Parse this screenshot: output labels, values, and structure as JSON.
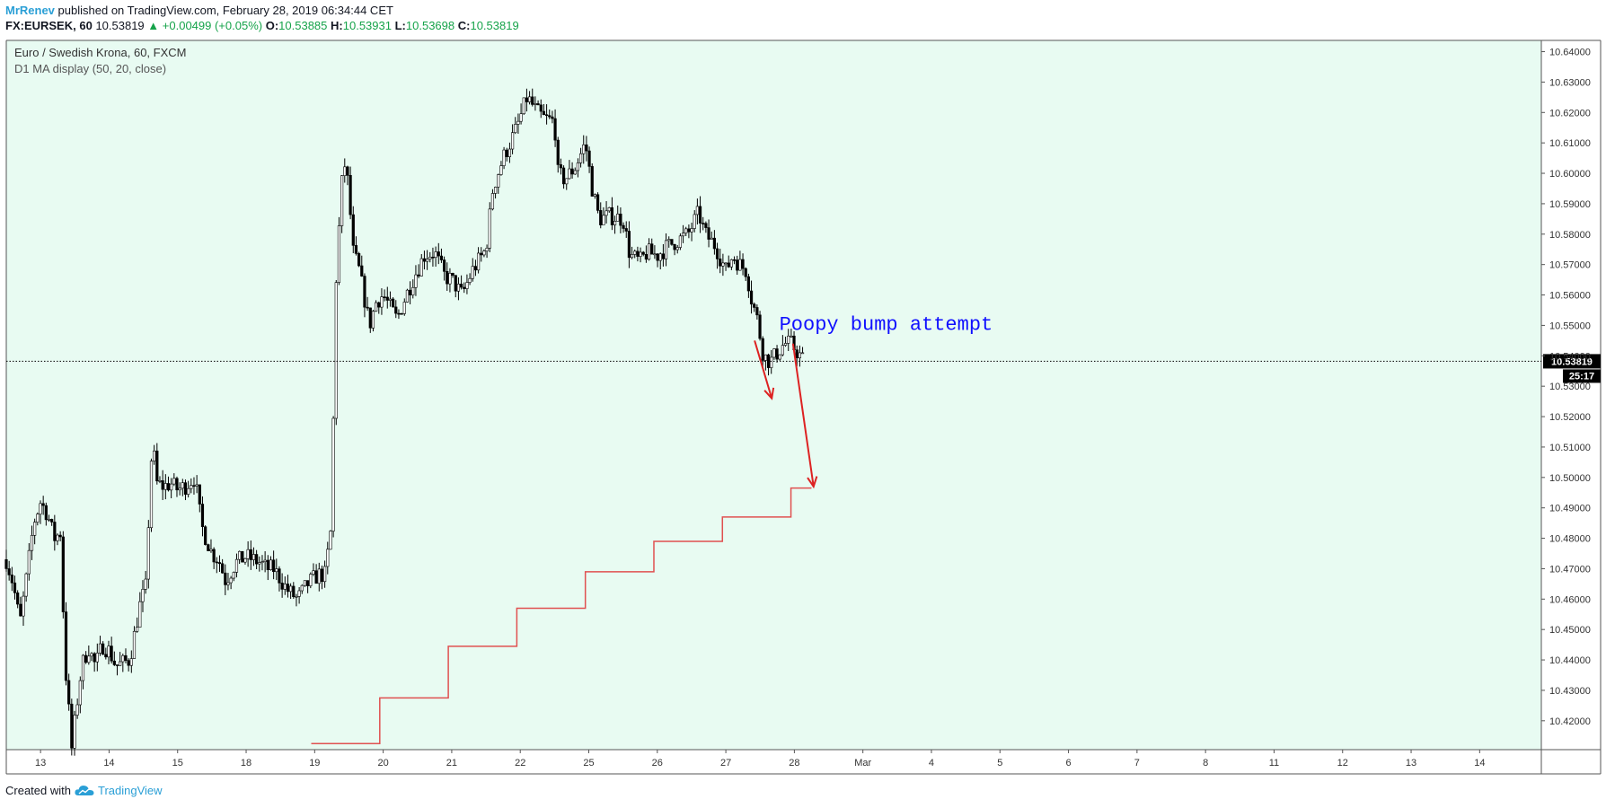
{
  "header": {
    "author": "MrRenev",
    "published": "published on TradingView.com, February 28, 2019 06:34:44 CET",
    "symbol": "FX:EURSEK, 60",
    "last": "10.53819",
    "change": "▲ +0.00499 (+0.05%)",
    "o_label": "O:",
    "o_value": "10.53885",
    "h_label": "H:",
    "h_value": "10.53931",
    "l_label": "L:",
    "l_value": "10.53698",
    "c_label": "C:",
    "c_value": "10.53819"
  },
  "footer": {
    "created_with": "Created with",
    "brand": "TradingView"
  },
  "colors": {
    "background": "#e8fbf2",
    "candle": "#000000",
    "ma_line": "#e05050",
    "annotation_text": "#1010ff",
    "arrow": "#dd2222",
    "axis_text": "#333333",
    "price_label_bg": "#000000"
  },
  "chart_data": {
    "type": "candlestick",
    "title": "Euro / Swedish Krona, 60, FXCM",
    "indicator": "D1 MA display (50, 20, close)",
    "yticks": [
      "10.64000",
      "10.63000",
      "10.62000",
      "10.61000",
      "10.60000",
      "10.59000",
      "10.58000",
      "10.57000",
      "10.56000",
      "10.55000",
      "10.54000",
      "10.53000",
      "10.52000",
      "10.51000",
      "10.50000",
      "10.49000",
      "10.48000",
      "10.47000",
      "10.46000",
      "10.45000",
      "10.44000",
      "10.43000",
      "10.42000"
    ],
    "ylim": [
      10.4105,
      10.6437
    ],
    "xticks": [
      "13",
      "14",
      "15",
      "18",
      "19",
      "20",
      "21",
      "22",
      "25",
      "26",
      "27",
      "28",
      "Mar",
      "4",
      "5",
      "6",
      "7",
      "8",
      "11",
      "12",
      "13",
      "14"
    ],
    "xtick_index": [
      0,
      1,
      2,
      3,
      4,
      5,
      6,
      7,
      8,
      9,
      10,
      11,
      12,
      13,
      14,
      15,
      16,
      17,
      18,
      19,
      20,
      21
    ],
    "x_domain": [
      -0.5,
      21.9
    ],
    "current_price": "10.53819",
    "current_price_value": 10.53819,
    "countdown": "25:17",
    "close_path": [
      [
        -0.5,
        10.473
      ],
      [
        -0.4,
        10.465
      ],
      [
        -0.3,
        10.452
      ],
      [
        -0.2,
        10.468
      ],
      [
        -0.1,
        10.485
      ],
      [
        0.0,
        10.492
      ],
      [
        0.1,
        10.488
      ],
      [
        0.2,
        10.48
      ],
      [
        0.3,
        10.482
      ],
      [
        0.35,
        10.44
      ],
      [
        0.4,
        10.428
      ],
      [
        0.45,
        10.41
      ],
      [
        0.5,
        10.42
      ],
      [
        0.6,
        10.438
      ],
      [
        0.7,
        10.444
      ],
      [
        0.8,
        10.438
      ],
      [
        0.9,
        10.445
      ],
      [
        1.0,
        10.443
      ],
      [
        1.1,
        10.438
      ],
      [
        1.3,
        10.44
      ],
      [
        1.45,
        10.458
      ],
      [
        1.55,
        10.465
      ],
      [
        1.6,
        10.505
      ],
      [
        1.65,
        10.508
      ],
      [
        1.7,
        10.498
      ],
      [
        1.8,
        10.497
      ],
      [
        1.9,
        10.498
      ],
      [
        2.0,
        10.496
      ],
      [
        2.1,
        10.497
      ],
      [
        2.25,
        10.5
      ],
      [
        2.35,
        10.484
      ],
      [
        2.5,
        10.475
      ],
      [
        2.6,
        10.473
      ],
      [
        2.7,
        10.466
      ],
      [
        2.85,
        10.472
      ],
      [
        3.0,
        10.474
      ],
      [
        3.1,
        10.473
      ],
      [
        3.2,
        10.472
      ],
      [
        3.3,
        10.47
      ],
      [
        3.4,
        10.47
      ],
      [
        3.6,
        10.463
      ],
      [
        3.75,
        10.46
      ],
      [
        3.9,
        10.465
      ],
      [
        4.05,
        10.468
      ],
      [
        4.15,
        10.468
      ],
      [
        4.25,
        10.485
      ],
      [
        4.3,
        10.56
      ],
      [
        4.35,
        10.58
      ],
      [
        4.42,
        10.605
      ],
      [
        4.5,
        10.595
      ],
      [
        4.55,
        10.575
      ],
      [
        4.65,
        10.568
      ],
      [
        4.75,
        10.556
      ],
      [
        4.8,
        10.55
      ],
      [
        4.9,
        10.558
      ],
      [
        5.0,
        10.56
      ],
      [
        5.1,
        10.556
      ],
      [
        5.2,
        10.552
      ],
      [
        5.3,
        10.558
      ],
      [
        5.45,
        10.566
      ],
      [
        5.6,
        10.573
      ],
      [
        5.75,
        10.574
      ],
      [
        5.9,
        10.566
      ],
      [
        6.0,
        10.565
      ],
      [
        6.15,
        10.56
      ],
      [
        6.3,
        10.568
      ],
      [
        6.5,
        10.575
      ],
      [
        6.6,
        10.595
      ],
      [
        6.75,
        10.605
      ],
      [
        6.95,
        10.615
      ],
      [
        7.1,
        10.625
      ],
      [
        7.25,
        10.62
      ],
      [
        7.35,
        10.618
      ],
      [
        7.5,
        10.617
      ],
      [
        7.55,
        10.6
      ],
      [
        7.65,
        10.598
      ],
      [
        7.8,
        10.602
      ],
      [
        7.95,
        10.61
      ],
      [
        8.05,
        10.595
      ],
      [
        8.15,
        10.585
      ],
      [
        8.3,
        10.586
      ],
      [
        8.5,
        10.585
      ],
      [
        8.6,
        10.573
      ],
      [
        8.75,
        10.571
      ],
      [
        8.85,
        10.574
      ],
      [
        9.0,
        10.573
      ],
      [
        9.15,
        10.576
      ],
      [
        9.3,
        10.578
      ],
      [
        9.45,
        10.58
      ],
      [
        9.6,
        10.587
      ],
      [
        9.7,
        10.58
      ],
      [
        9.85,
        10.576
      ],
      [
        10.0,
        10.568
      ],
      [
        10.1,
        10.573
      ],
      [
        10.2,
        10.57
      ],
      [
        10.3,
        10.568
      ],
      [
        10.38,
        10.558
      ],
      [
        10.45,
        10.553
      ],
      [
        10.55,
        10.54
      ],
      [
        10.65,
        10.538
      ],
      [
        10.75,
        10.541
      ],
      [
        10.85,
        10.544
      ],
      [
        10.95,
        10.544
      ],
      [
        11.05,
        10.541
      ],
      [
        11.15,
        10.538
      ]
    ],
    "ma_levels": [
      {
        "x0": 3.95,
        "x1": 4.95,
        "y": 10.4125
      },
      {
        "x0": 4.95,
        "x1": 5.95,
        "y": 10.4275
      },
      {
        "x0": 5.95,
        "x1": 6.95,
        "y": 10.4445
      },
      {
        "x0": 6.95,
        "x1": 7.95,
        "y": 10.457
      },
      {
        "x0": 7.95,
        "x1": 8.95,
        "y": 10.469
      },
      {
        "x0": 8.95,
        "x1": 9.95,
        "y": 10.479
      },
      {
        "x0": 9.95,
        "x1": 10.95,
        "y": 10.487
      },
      {
        "x0": 10.95,
        "x1": 11.25,
        "y": 10.4965
      }
    ],
    "annotation": {
      "text": "Poopy bump attempt",
      "x": 10.78,
      "y": 10.5485
    },
    "arrows": [
      {
        "x1": 10.42,
        "y1": 10.545,
        "x2": 10.67,
        "y2": 10.526
      },
      {
        "x1": 10.98,
        "y1": 10.544,
        "x2": 11.28,
        "y2": 10.497
      }
    ]
  }
}
